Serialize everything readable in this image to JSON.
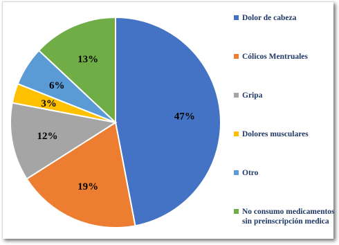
{
  "chart_data": {
    "type": "pie",
    "title": "",
    "slices": [
      {
        "label": "Dolor de cabeza",
        "value": 47,
        "display": "47%",
        "color": "#4472c4"
      },
      {
        "label": "Cólicos Mentruales",
        "value": 19,
        "display": "19%",
        "color": "#ed7d31"
      },
      {
        "label": "Gripa",
        "value": 12,
        "display": "12%",
        "color": "#a5a5a5"
      },
      {
        "label": "Dolores musculares",
        "value": 3,
        "display": "3%",
        "color": "#ffc000"
      },
      {
        "label": "Otro",
        "value": 6,
        "display": "6%",
        "color": "#5b9bd5"
      },
      {
        "label": "No consumo medicamentos sin preinscripción medica",
        "value": 13,
        "display": "13%",
        "color": "#70ad47"
      }
    ],
    "start_angle": "12 o'clock",
    "direction": "clockwise",
    "legend_position": "right"
  }
}
